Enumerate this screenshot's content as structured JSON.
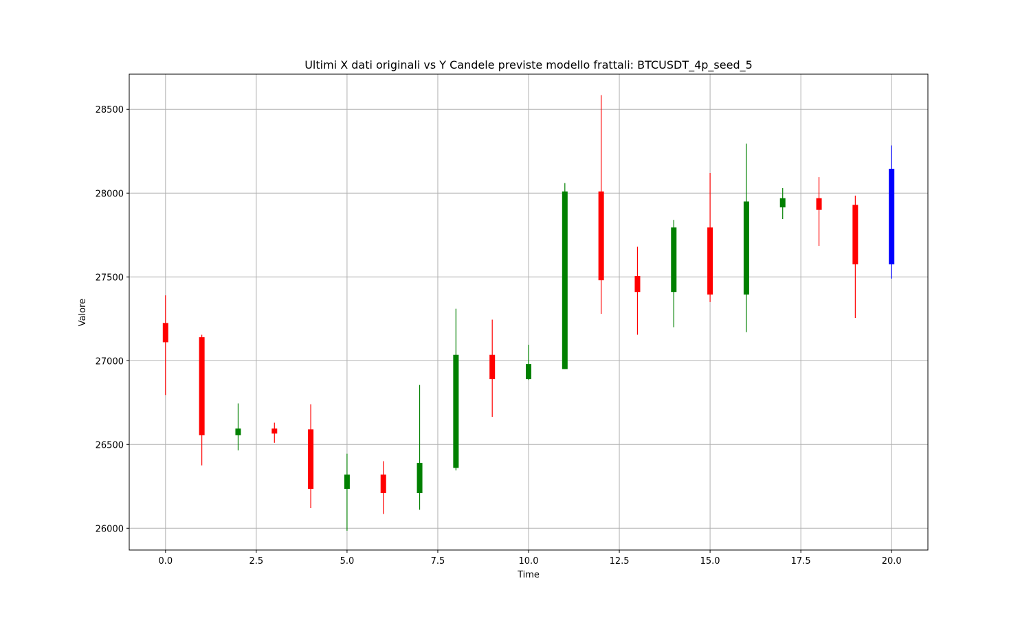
{
  "chart_data": {
    "type": "candlestick",
    "title": "Ultimi X dati originali vs Y Candele previste modello frattali: BTCUSDT_4p_seed_5",
    "xlabel": "Time",
    "ylabel": "Valore",
    "xlim": [
      -1,
      21
    ],
    "ylim": [
      25870,
      28710
    ],
    "xticks": [
      0.0,
      2.5,
      5.0,
      7.5,
      10.0,
      12.5,
      15.0,
      17.5,
      20.0
    ],
    "xtick_labels": [
      "0.0",
      "2.5",
      "5.0",
      "7.5",
      "10.0",
      "12.5",
      "15.0",
      "17.5",
      "20.0"
    ],
    "yticks": [
      26000,
      26500,
      27000,
      27500,
      28000,
      28500
    ],
    "ytick_labels": [
      "26000",
      "26500",
      "27000",
      "27500",
      "28000",
      "28500"
    ],
    "grid": true,
    "colors": {
      "up": "#008000",
      "down": "#ff0000",
      "predicted": "#0000ff"
    },
    "candles": [
      {
        "t": 0,
        "open": 27225,
        "close": 27110,
        "high": 27390,
        "low": 26795,
        "kind": "down"
      },
      {
        "t": 1,
        "open": 27140,
        "close": 26555,
        "high": 27155,
        "low": 26375,
        "kind": "down"
      },
      {
        "t": 2,
        "open": 26555,
        "close": 26595,
        "high": 26745,
        "low": 26465,
        "kind": "up"
      },
      {
        "t": 3,
        "open": 26595,
        "close": 26565,
        "high": 26630,
        "low": 26510,
        "kind": "down"
      },
      {
        "t": 4,
        "open": 26590,
        "close": 26235,
        "high": 26740,
        "low": 26120,
        "kind": "down"
      },
      {
        "t": 5,
        "open": 26235,
        "close": 26320,
        "high": 26445,
        "low": 25985,
        "kind": "up"
      },
      {
        "t": 6,
        "open": 26320,
        "close": 26210,
        "high": 26400,
        "low": 26085,
        "kind": "down"
      },
      {
        "t": 7,
        "open": 26210,
        "close": 26390,
        "high": 26855,
        "low": 26110,
        "kind": "up"
      },
      {
        "t": 8,
        "open": 26360,
        "close": 27035,
        "high": 27310,
        "low": 26345,
        "kind": "up"
      },
      {
        "t": 9,
        "open": 27035,
        "close": 26890,
        "high": 27245,
        "low": 26665,
        "kind": "down"
      },
      {
        "t": 10,
        "open": 26890,
        "close": 26980,
        "high": 27095,
        "low": 26885,
        "kind": "up"
      },
      {
        "t": 11,
        "open": 26950,
        "close": 28010,
        "high": 28060,
        "low": 26950,
        "kind": "up"
      },
      {
        "t": 12,
        "open": 28010,
        "close": 27480,
        "high": 28585,
        "low": 27280,
        "kind": "down"
      },
      {
        "t": 13,
        "open": 27505,
        "close": 27410,
        "high": 27680,
        "low": 27155,
        "kind": "down"
      },
      {
        "t": 14,
        "open": 27410,
        "close": 27795,
        "high": 27840,
        "low": 27200,
        "kind": "up"
      },
      {
        "t": 15,
        "open": 27795,
        "close": 27395,
        "high": 28120,
        "low": 27350,
        "kind": "down"
      },
      {
        "t": 16,
        "open": 27395,
        "close": 27950,
        "high": 28295,
        "low": 27170,
        "kind": "up"
      },
      {
        "t": 17,
        "open": 27915,
        "close": 27970,
        "high": 28030,
        "low": 27845,
        "kind": "up"
      },
      {
        "t": 18,
        "open": 27970,
        "close": 27900,
        "high": 28095,
        "low": 27685,
        "kind": "down"
      },
      {
        "t": 19,
        "open": 27930,
        "close": 27575,
        "high": 27985,
        "low": 27255,
        "kind": "down"
      },
      {
        "t": 20,
        "open": 28145,
        "close": 27575,
        "high": 28285,
        "low": 27490,
        "kind": "predicted"
      }
    ]
  }
}
